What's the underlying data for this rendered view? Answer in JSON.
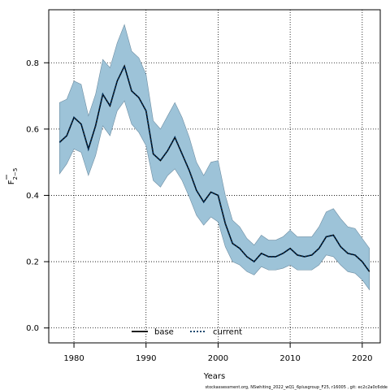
{
  "chart_data": {
    "type": "line",
    "xlabel": "Years",
    "ylabel": "F",
    "ylabel_sub": "2−5",
    "xlim": [
      1976.5,
      2022.5
    ],
    "ylim": [
      -0.045,
      0.96
    ],
    "xticks": [
      1980,
      1990,
      2000,
      2010,
      2020
    ],
    "yticks": [
      0.0,
      0.2,
      0.4,
      0.6,
      0.8
    ],
    "ytick_labels": [
      "0.0",
      "0.2",
      "0.4",
      "0.6",
      "0.8"
    ],
    "grid": true,
    "legend_position": "bottom",
    "x": [
      1978,
      1979,
      1980,
      1981,
      1982,
      1983,
      1984,
      1985,
      1986,
      1987,
      1988,
      1989,
      1990,
      1991,
      1992,
      1993,
      1994,
      1995,
      1996,
      1997,
      1998,
      1999,
      2000,
      2001,
      2002,
      2003,
      2004,
      2005,
      2006,
      2007,
      2008,
      2009,
      2010,
      2011,
      2012,
      2013,
      2014,
      2015,
      2016,
      2017,
      2018,
      2019,
      2020,
      2021
    ],
    "series": [
      {
        "name": "base",
        "color": "#000000",
        "style": "solid",
        "values": [
          0.56,
          0.58,
          0.635,
          0.615,
          0.54,
          0.61,
          0.705,
          0.67,
          0.745,
          0.79,
          0.715,
          0.695,
          0.655,
          0.525,
          0.505,
          0.535,
          0.575,
          0.525,
          0.475,
          0.415,
          0.38,
          0.41,
          0.4,
          0.315,
          0.255,
          0.24,
          0.215,
          0.2,
          0.225,
          0.215,
          0.215,
          0.225,
          0.24,
          0.22,
          0.215,
          0.22,
          0.24,
          0.275,
          0.28,
          0.245,
          0.225,
          0.22,
          0.2,
          0.17
        ]
      },
      {
        "name": "current",
        "color": "#00305c",
        "style": "dotted",
        "values": [
          0.56,
          0.58,
          0.635,
          0.615,
          0.54,
          0.61,
          0.705,
          0.67,
          0.745,
          0.79,
          0.715,
          0.695,
          0.655,
          0.525,
          0.505,
          0.535,
          0.575,
          0.525,
          0.475,
          0.415,
          0.38,
          0.41,
          0.4,
          0.315,
          0.255,
          0.24,
          0.215,
          0.2,
          0.225,
          0.215,
          0.215,
          0.225,
          0.24,
          0.22,
          0.215,
          0.22,
          0.24,
          0.275,
          0.28,
          0.245,
          0.225,
          0.22,
          0.2,
          0.17
        ]
      }
    ],
    "band": {
      "color": "#9dc3d8",
      "edge_color": "#6e8ea3",
      "lower": [
        0.465,
        0.495,
        0.54,
        0.53,
        0.46,
        0.52,
        0.61,
        0.58,
        0.655,
        0.685,
        0.615,
        0.59,
        0.55,
        0.445,
        0.425,
        0.46,
        0.48,
        0.445,
        0.395,
        0.34,
        0.31,
        0.335,
        0.32,
        0.245,
        0.2,
        0.19,
        0.17,
        0.16,
        0.185,
        0.175,
        0.175,
        0.18,
        0.19,
        0.175,
        0.175,
        0.175,
        0.19,
        0.22,
        0.215,
        0.19,
        0.17,
        0.165,
        0.145,
        0.115
      ],
      "upper": [
        0.68,
        0.69,
        0.745,
        0.735,
        0.64,
        0.705,
        0.81,
        0.785,
        0.86,
        0.915,
        0.835,
        0.815,
        0.765,
        0.625,
        0.6,
        0.64,
        0.68,
        0.635,
        0.575,
        0.5,
        0.46,
        0.5,
        0.505,
        0.4,
        0.325,
        0.305,
        0.27,
        0.25,
        0.28,
        0.265,
        0.265,
        0.275,
        0.295,
        0.275,
        0.275,
        0.275,
        0.305,
        0.35,
        0.36,
        0.33,
        0.305,
        0.3,
        0.27,
        0.24
      ]
    }
  },
  "credit": "stockassessment.org, NSwhiting_2022_wQ1_6plusgroup_F25, r16005 , git: ec2c2a0c6dde"
}
